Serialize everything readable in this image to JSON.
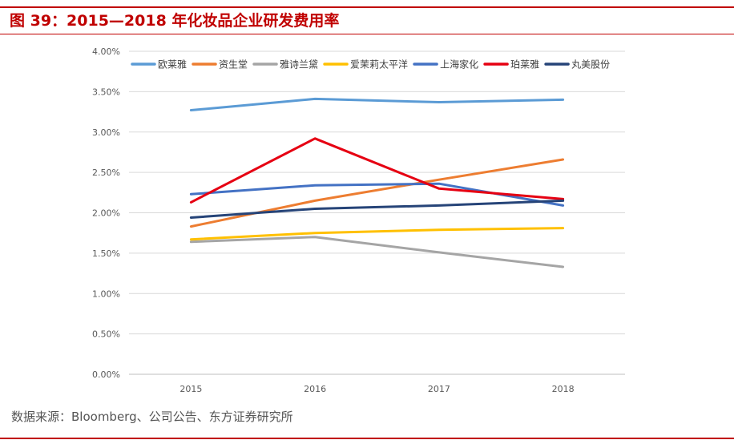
{
  "figure": {
    "title": "图 39：2015—2018 年化妆品企业研发费用率",
    "source": "数据来源：Bloomberg、公司公告、东方证券研究所"
  },
  "chart_data": {
    "type": "line",
    "title": "",
    "xlabel": "",
    "ylabel": "",
    "x": [
      "2015",
      "2016",
      "2017",
      "2018"
    ],
    "ylim": [
      0,
      0.04
    ],
    "yticks": [
      0,
      0.005,
      0.01,
      0.015,
      0.02,
      0.025,
      0.03,
      0.035,
      0.04
    ],
    "ytick_labels": [
      "0.00%",
      "0.50%",
      "1.00%",
      "1.50%",
      "2.00%",
      "2.50%",
      "3.00%",
      "3.50%",
      "4.00%"
    ],
    "grid": true,
    "legend_position": "top",
    "series": [
      {
        "name": "欧莱雅",
        "color": "#5b9bd5",
        "values": [
          0.0327,
          0.0341,
          0.0337,
          0.034
        ]
      },
      {
        "name": "资生堂",
        "color": "#ed7d31",
        "values": [
          0.0183,
          0.0215,
          0.0241,
          0.0266
        ]
      },
      {
        "name": "雅诗兰黛",
        "color": "#a5a5a5",
        "values": [
          0.0164,
          0.017,
          0.0151,
          0.0133
        ]
      },
      {
        "name": "爱茉莉太平洋",
        "color": "#ffc000",
        "values": [
          0.0167,
          0.0175,
          0.0179,
          0.0181
        ]
      },
      {
        "name": "上海家化",
        "color": "#4472c4",
        "values": [
          0.0223,
          0.0234,
          0.0236,
          0.0209
        ]
      },
      {
        "name": "珀莱雅",
        "color": "#e60012",
        "values": [
          0.0213,
          0.0292,
          0.023,
          0.0217
        ]
      },
      {
        "name": "丸美股份",
        "color": "#264478",
        "values": [
          0.0194,
          0.0205,
          0.0209,
          0.0215
        ]
      }
    ]
  }
}
